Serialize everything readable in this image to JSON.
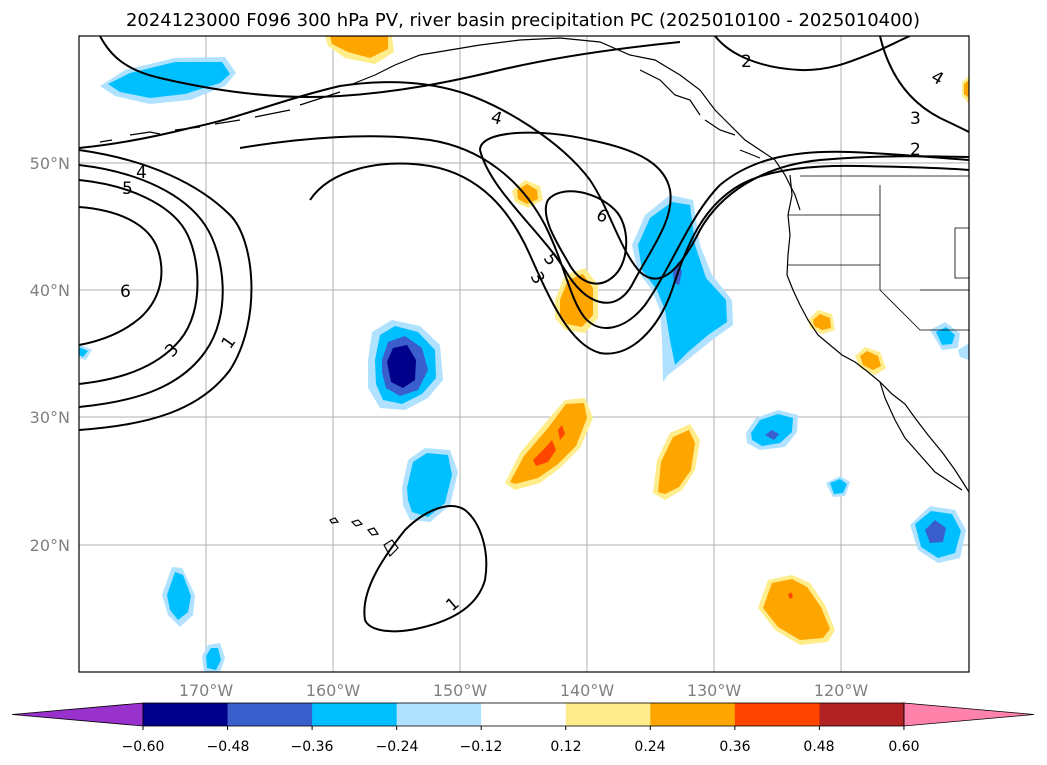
{
  "title": "2024123000 F096 300 hPa PV, river basin precipitation PC (2025010100 - 2025010400)",
  "lat_labels": [
    "50°N",
    "40°N",
    "30°N",
    "20°N"
  ],
  "lon_labels": [
    "170°W",
    "160°W",
    "150°W",
    "140°W",
    "130°W",
    "120°W"
  ],
  "colorbar": {
    "ticks": [
      "−0.60",
      "−0.48",
      "−0.36",
      "−0.24",
      "−0.12",
      "0.12",
      "0.24",
      "0.36",
      "0.48",
      "0.60"
    ],
    "colors": [
      "#9932cc",
      "#00008b",
      "#3a5fcd",
      "#00bfff",
      "#b0e2ff",
      "#ffffff",
      "#ffec8b",
      "#ffa500",
      "#ff4500",
      "#b22222",
      "#ff82ab"
    ]
  },
  "contour_labels": [
    "1",
    "1",
    "2",
    "2",
    "3",
    "3",
    "3",
    "4",
    "4",
    "4",
    "5",
    "5",
    "6",
    "6"
  ],
  "chart_data": {
    "type": "map",
    "title": "2024123000 F096 300 hPa PV, river basin precipitation PC (2025010100 - 2025010400)",
    "xlim": [
      -178,
      -108
    ],
    "ylim": [
      10,
      60
    ],
    "fields": {
      "contour": {
        "name": "300 hPa PV",
        "levels": [
          1,
          2,
          3,
          4,
          5,
          6
        ]
      },
      "filled": {
        "name": "river basin precipitation PC",
        "levels": [
          -0.6,
          -0.48,
          -0.36,
          -0.24,
          -0.12,
          0.12,
          0.24,
          0.36,
          0.48,
          0.6
        ]
      }
    },
    "grid": true,
    "colorbar": "bottom"
  }
}
